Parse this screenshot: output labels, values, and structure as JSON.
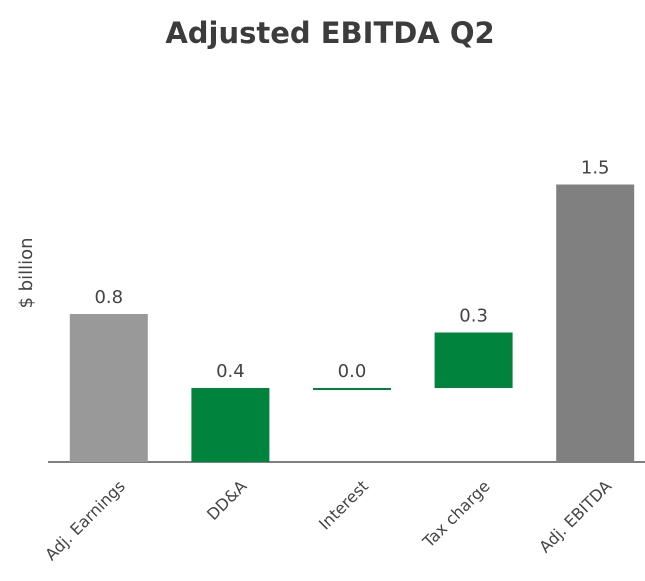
{
  "chart_data": {
    "type": "waterfall",
    "title": "Adjusted EBITDA Q2",
    "y_label": "$ billion",
    "categories": [
      "Adj. Earnings",
      "DD&A",
      "Interest",
      "Tax charge",
      "Adj. EBITDA"
    ],
    "values": [
      0.8,
      0.4,
      0.0,
      0.3,
      1.5
    ],
    "value_labels": [
      "0.8",
      "0.4",
      "0.0",
      "0.3",
      "1.5"
    ],
    "totals": [
      true,
      false,
      false,
      false,
      true
    ],
    "colors": [
      "#999999",
      "#00843d",
      "#00843d",
      "#00843d",
      "#808080"
    ],
    "ylim": [
      0,
      1.6
    ]
  }
}
